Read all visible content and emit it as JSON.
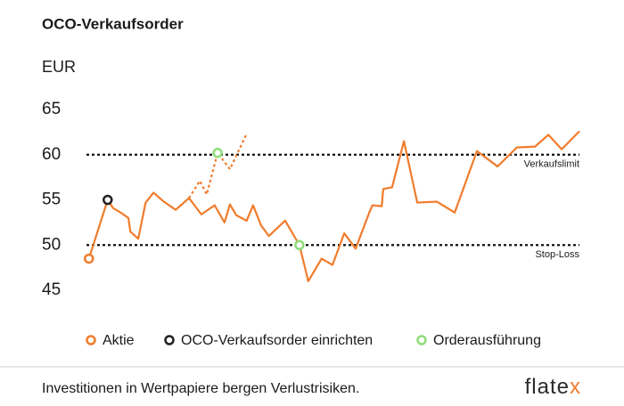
{
  "chart_data": {
    "type": "line",
    "title": "OCO-Verkaufsorder",
    "y_label": "EUR",
    "xlim": [
      0,
      100
    ],
    "ylim": [
      45,
      65
    ],
    "yticks": [
      45,
      50,
      55,
      60,
      65
    ],
    "color": "#f07c2c",
    "lines": [
      {
        "dashed": false,
        "x": [
          0.5,
          4.3,
          5.4,
          7.2,
          8.5,
          8.9,
          10.5,
          12,
          13.6,
          15.7,
          18.1,
          20.8,
          23.3,
          26,
          28,
          29.1,
          30.4,
          32.5,
          33.8,
          35.4,
          37,
          40.3,
          43.2,
          45,
          47.7,
          49.9,
          52.3,
          54.6,
          57.3,
          58,
          59.9,
          60.2,
          62,
          64.4,
          67.1,
          71.1,
          74.7,
          79.2,
          83.4,
          87.3,
          91,
          93.7,
          96.4,
          100
        ],
        "values": [
          48.5,
          55,
          54.1,
          53.5,
          53,
          51.5,
          50.7,
          54.7,
          55.8,
          54.8,
          53.9,
          55.2,
          53.4,
          54.4,
          52.5,
          54.5,
          53.3,
          52.7,
          54.4,
          52.2,
          51,
          52.7,
          50,
          46,
          48.5,
          47.8,
          51.3,
          49.6,
          53.5,
          54.4,
          54.3,
          56.2,
          56.4,
          61.5,
          54.7,
          54.8,
          53.6,
          60.4,
          58.7,
          60.8,
          60.9,
          62.2,
          60.6,
          62.6
        ]
      },
      {
        "dashed": true,
        "x": [
          20.8,
          23,
          24.4,
          26.6,
          29.1,
          32.4
        ],
        "values": [
          55.2,
          57.1,
          55.6,
          60.2,
          58.4,
          62.2
        ]
      }
    ],
    "hlines": [
      {
        "value": 60,
        "label": "Verkaufslimit"
      },
      {
        "value": 50,
        "label": "Stop-Loss"
      }
    ],
    "markers": [
      {
        "name": "Aktie",
        "color": "#f07c2c",
        "x": [
          0.5
        ],
        "values": [
          48.5
        ]
      },
      {
        "name": "OCO-Verkaufsorder einrichten",
        "color": "#222222",
        "x": [
          4.3
        ],
        "values": [
          55
        ]
      },
      {
        "name": "Orderausführung",
        "color": "#8fdc7a",
        "x": [
          26.6,
          43.2
        ],
        "values": [
          60.2,
          50
        ]
      }
    ]
  },
  "footer": {
    "text": "Investitionen in Wertpapiere bergen Verlustrisiken.",
    "logo": [
      "flate",
      "x"
    ]
  }
}
